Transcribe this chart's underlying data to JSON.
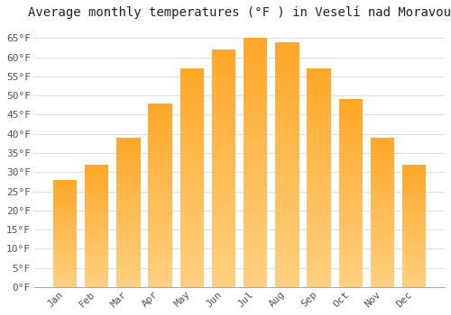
{
  "title": "Average monthly temperatures (°F ) in Veselí nad Moravou",
  "months": [
    "Jan",
    "Feb",
    "Mar",
    "Apr",
    "May",
    "Jun",
    "Jul",
    "Aug",
    "Sep",
    "Oct",
    "Nov",
    "Dec"
  ],
  "values": [
    28,
    32,
    39,
    48,
    57,
    62,
    65,
    64,
    57,
    49,
    39,
    32
  ],
  "bar_color_top": "#FFA726",
  "bar_color_bottom": "#FFD080",
  "background_color": "#ffffff",
  "grid_color": "#e0e0e0",
  "yticks": [
    0,
    5,
    10,
    15,
    20,
    25,
    30,
    35,
    40,
    45,
    50,
    55,
    60,
    65
  ],
  "ylim": [
    0,
    68
  ],
  "title_fontsize": 10,
  "tick_fontsize": 8,
  "font_family": "monospace"
}
